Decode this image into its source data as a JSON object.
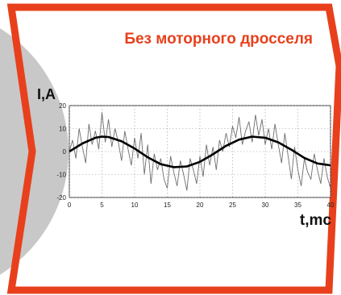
{
  "colors": {
    "frame": "#e8401c",
    "disc": "#c8c8c8",
    "title": "#e8401c",
    "label": "#111111",
    "noisy": "#6e6e6e",
    "smooth": "#000000"
  },
  "chart_data": {
    "type": "line",
    "title": "Без моторного дросселя",
    "xlabel": "t,mc",
    "ylabel": "I,A",
    "xlim": [
      0,
      40
    ],
    "ylim": [
      -20,
      20
    ],
    "xticks": [
      0,
      5,
      10,
      15,
      20,
      25,
      30,
      35,
      40
    ],
    "yticks": [
      20,
      10,
      0,
      -10,
      -20
    ],
    "grid": true,
    "legend": "none",
    "series": [
      {
        "kind": "smooth",
        "x": [
          0,
          2,
          4,
          5,
          6,
          8,
          10,
          12,
          14,
          16,
          18,
          20,
          22,
          24,
          26,
          28,
          30,
          32,
          34,
          36,
          38,
          40
        ],
        "y": [
          0,
          3.5,
          6,
          6.5,
          6.3,
          4.5,
          1.3,
          -2.5,
          -5.5,
          -6.8,
          -6.5,
          -4.5,
          -1.2,
          2.5,
          5.2,
          6.5,
          6.0,
          4.0,
          0.8,
          -2.8,
          -5.2,
          -6.0
        ]
      },
      {
        "kind": "noisy",
        "x": [
          0,
          0.5,
          1,
          1.5,
          2,
          2.5,
          3,
          3.5,
          4,
          4.5,
          5,
          5.5,
          6,
          6.5,
          7,
          7.5,
          8,
          8.5,
          9,
          9.5,
          10,
          10.5,
          11,
          11.5,
          12,
          12.5,
          13,
          13.5,
          14,
          14.5,
          15,
          15.5,
          16,
          16.5,
          17,
          17.5,
          18,
          18.5,
          19,
          19.5,
          20,
          20.5,
          21,
          21.5,
          22,
          22.5,
          23,
          23.5,
          24,
          24.5,
          25,
          25.5,
          26,
          26.5,
          27,
          27.5,
          28,
          28.5,
          29,
          29.5,
          30,
          30.5,
          31,
          31.5,
          32,
          32.5,
          33,
          33.5,
          34,
          34.5,
          35,
          35.5,
          36,
          36.5,
          37,
          37.5,
          38,
          38.5,
          39,
          39.5,
          40
        ],
        "y": [
          0,
          5,
          -3,
          10,
          2,
          -5,
          12,
          3,
          9,
          1,
          17,
          4,
          14,
          2,
          10,
          4,
          -4,
          9,
          1,
          -6,
          6,
          -3,
          8,
          -10,
          3,
          -14,
          -1,
          -8,
          -3,
          -12,
          -16,
          -2,
          -9,
          -15,
          -4,
          -10,
          -17,
          -3,
          -8,
          -14,
          -2,
          -11,
          3,
          -6,
          2,
          -8,
          5,
          0,
          8,
          2,
          11,
          6,
          15,
          3,
          9,
          13,
          4,
          16,
          7,
          14,
          3,
          10,
          1,
          12,
          3,
          -5,
          8,
          -2,
          -12,
          2,
          -8,
          -15,
          -3,
          -9,
          -12,
          -1,
          -8,
          -14,
          -3,
          -11,
          -16
        ]
      }
    ]
  }
}
